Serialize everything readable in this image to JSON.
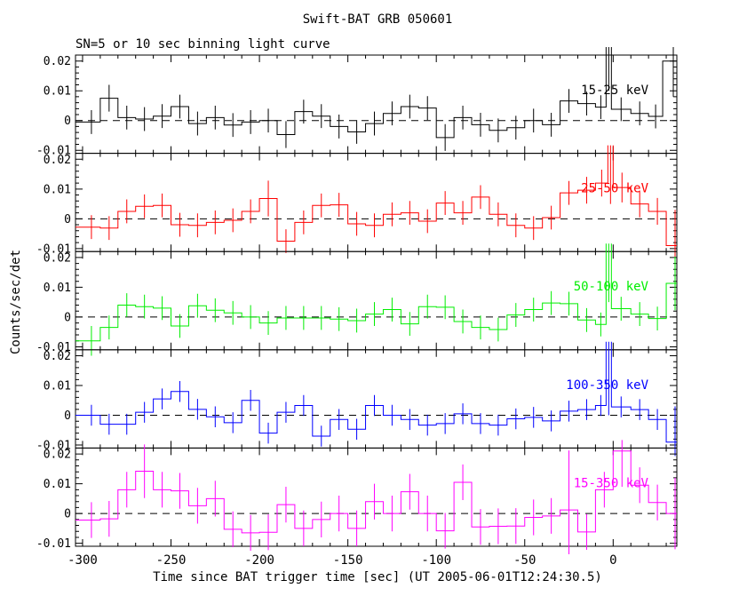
{
  "title": "Swift-BAT GRB 050601",
  "subtitle": "SN=5 or 10 sec binning light curve",
  "xlabel": "Time since BAT trigger time [sec] (UT 2005-06-01T12:24:30.5)",
  "ylabel": "Counts/sec/det",
  "chart_data": {
    "type": "step-histogram-multipanel",
    "xlim": [
      -304,
      36
    ],
    "x_ticks": [
      -300,
      -250,
      -200,
      -150,
      -100,
      -50,
      0
    ],
    "x_minor_step": 10,
    "bin_seconds": 10,
    "ylim": [
      -0.011,
      0.022
    ],
    "y_major_ticks": [
      -0.01,
      0,
      0.01,
      0.02
    ],
    "y_minor_step": 0.002,
    "zero_line": "dashed",
    "panels": [
      {
        "label": "15-25 keV",
        "color": "#000000",
        "steps": [
          [
            -300,
            -290,
            -0.0005
          ],
          [
            -290,
            -280,
            0.0075
          ],
          [
            -280,
            -270,
            0.001
          ],
          [
            -270,
            -260,
            0.0005
          ],
          [
            -260,
            -250,
            0.0015
          ],
          [
            -250,
            -240,
            0.0047
          ],
          [
            -240,
            -230,
            -0.001
          ],
          [
            -230,
            -220,
            0.001
          ],
          [
            -220,
            -210,
            -0.0015
          ],
          [
            -210,
            -200,
            -0.0005
          ],
          [
            -200,
            -190,
            0
          ],
          [
            -190,
            -180,
            -0.0047
          ],
          [
            -180,
            -170,
            0.003
          ],
          [
            -170,
            -160,
            0.0015
          ],
          [
            -160,
            -150,
            -0.002
          ],
          [
            -150,
            -140,
            -0.0038
          ],
          [
            -140,
            -130,
            -0.001
          ],
          [
            -130,
            -120,
            0.0024
          ],
          [
            -120,
            -110,
            0.0047
          ],
          [
            -110,
            -100,
            0.0042
          ],
          [
            -100,
            -90,
            -0.0057
          ],
          [
            -90,
            -80,
            0.001
          ],
          [
            -80,
            -70,
            -0.0014
          ],
          [
            -70,
            -60,
            -0.0033
          ],
          [
            -60,
            -50,
            -0.0024
          ],
          [
            -50,
            -40,
            0
          ],
          [
            -40,
            -30,
            -0.0014
          ],
          [
            -30,
            -20,
            0.0066
          ],
          [
            -20,
            -10,
            0.0057
          ],
          [
            -10,
            -4,
            0.0045
          ],
          [
            -4,
            -1,
            0.06
          ],
          [
            -1,
            10,
            0.0038
          ],
          [
            10,
            20,
            0.0024
          ],
          [
            20,
            28,
            0.0014
          ],
          [
            28,
            40,
            0.02
          ]
        ],
        "errors": [
          0.004,
          0.0045,
          0.004,
          0.004,
          0.004,
          0.004,
          0.004,
          0.004,
          0.004,
          0.004,
          0.004,
          0.0045,
          0.004,
          0.004,
          0.004,
          0.004,
          0.004,
          0.004,
          0.004,
          0.004,
          0.0045,
          0.004,
          0.004,
          0.004,
          0.004,
          0.004,
          0.004,
          0.004,
          0.004,
          0.004,
          0.05,
          0.004,
          0.004,
          0.004,
          0.012
        ]
      },
      {
        "label": "25-50 keV",
        "color": "#ff0000",
        "steps": [
          [
            -300,
            -290,
            -0.0028
          ],
          [
            -290,
            -280,
            -0.0031
          ],
          [
            -280,
            -270,
            0.0025
          ],
          [
            -270,
            -260,
            0.0042
          ],
          [
            -260,
            -250,
            0.0045
          ],
          [
            -250,
            -240,
            -0.002
          ],
          [
            -240,
            -230,
            -0.0022
          ],
          [
            -230,
            -220,
            -0.0012
          ],
          [
            -220,
            -210,
            -0.0005
          ],
          [
            -210,
            -200,
            0.0025
          ],
          [
            -200,
            -190,
            0.0068
          ],
          [
            -190,
            -180,
            -0.0075
          ],
          [
            -180,
            -170,
            -0.0012
          ],
          [
            -170,
            -160,
            0.0045
          ],
          [
            -160,
            -150,
            0.0047
          ],
          [
            -150,
            -140,
            -0.0017
          ],
          [
            -140,
            -130,
            -0.0022
          ],
          [
            -130,
            -120,
            0.0015
          ],
          [
            -120,
            -110,
            0.002
          ],
          [
            -110,
            -100,
            -0.0008
          ],
          [
            -100,
            -90,
            0.0053
          ],
          [
            -90,
            -80,
            0.002
          ],
          [
            -80,
            -70,
            0.0073
          ],
          [
            -70,
            -60,
            0.0015
          ],
          [
            -60,
            -50,
            -0.0022
          ],
          [
            -50,
            -40,
            -0.0031
          ],
          [
            -40,
            -30,
            0.0004
          ],
          [
            -30,
            -20,
            0.0087
          ],
          [
            -20,
            -10,
            0.0096
          ],
          [
            -10,
            -3,
            0.012
          ],
          [
            -3,
            0,
            0.045
          ],
          [
            0,
            10,
            0.0105
          ],
          [
            10,
            20,
            0.005
          ],
          [
            20,
            30,
            0.0025
          ],
          [
            30,
            40,
            -0.009
          ]
        ],
        "errors": [
          0.004,
          0.004,
          0.004,
          0.004,
          0.004,
          0.004,
          0.004,
          0.004,
          0.004,
          0.004,
          0.006,
          0.004,
          0.004,
          0.004,
          0.004,
          0.004,
          0.004,
          0.004,
          0.004,
          0.004,
          0.004,
          0.004,
          0.004,
          0.004,
          0.004,
          0.004,
          0.004,
          0.004,
          0.0045,
          0.0045,
          0.04,
          0.005,
          0.0045,
          0.0045,
          0.012
        ]
      },
      {
        "label": "50-100 keV",
        "color": "#00ee00",
        "steps": [
          [
            -300,
            -290,
            -0.008
          ],
          [
            -290,
            -280,
            -0.0035
          ],
          [
            -280,
            -270,
            0.004
          ],
          [
            -270,
            -260,
            0.0035
          ],
          [
            -260,
            -250,
            0.003
          ],
          [
            -250,
            -240,
            -0.003
          ],
          [
            -240,
            -230,
            0.0038
          ],
          [
            -230,
            -220,
            0.0023
          ],
          [
            -220,
            -210,
            0.0014
          ],
          [
            -210,
            -200,
            0
          ],
          [
            -200,
            -190,
            -0.002
          ],
          [
            -190,
            -180,
            -0.0003
          ],
          [
            -180,
            -170,
            -0.0003
          ],
          [
            -170,
            -160,
            -0.0003
          ],
          [
            -160,
            -150,
            -0.0007
          ],
          [
            -150,
            -140,
            -0.0012
          ],
          [
            -140,
            -130,
            0.001
          ],
          [
            -130,
            -120,
            0.0025
          ],
          [
            -120,
            -110,
            -0.0023
          ],
          [
            -110,
            -100,
            0.0035
          ],
          [
            -100,
            -90,
            0.0033
          ],
          [
            -90,
            -80,
            -0.0015
          ],
          [
            -80,
            -70,
            -0.0035
          ],
          [
            -70,
            -60,
            -0.0042
          ],
          [
            -60,
            -50,
            0.0007
          ],
          [
            -50,
            -40,
            0.0025
          ],
          [
            -40,
            -30,
            0.0047
          ],
          [
            -30,
            -20,
            0.0045
          ],
          [
            -20,
            -10,
            -0.001
          ],
          [
            -10,
            -4,
            -0.0025
          ],
          [
            -4,
            -1,
            0.04
          ],
          [
            -1,
            10,
            0.0028
          ],
          [
            10,
            20,
            0.001
          ],
          [
            20,
            30,
            -0.0005
          ],
          [
            30,
            40,
            0.0113
          ]
        ],
        "errors": [
          0.005,
          0.004,
          0.004,
          0.004,
          0.004,
          0.004,
          0.004,
          0.004,
          0.004,
          0.004,
          0.004,
          0.004,
          0.004,
          0.004,
          0.004,
          0.004,
          0.004,
          0.004,
          0.004,
          0.004,
          0.004,
          0.004,
          0.004,
          0.004,
          0.004,
          0.004,
          0.004,
          0.004,
          0.004,
          0.004,
          0.035,
          0.004,
          0.004,
          0.004,
          0.009
        ]
      },
      {
        "label": "100-350 keV",
        "color": "#0000ff",
        "steps": [
          [
            -300,
            -290,
            0
          ],
          [
            -290,
            -280,
            -0.003
          ],
          [
            -280,
            -270,
            -0.003
          ],
          [
            -270,
            -260,
            0.001
          ],
          [
            -260,
            -250,
            0.0055
          ],
          [
            -250,
            -240,
            0.008
          ],
          [
            -240,
            -230,
            0.002
          ],
          [
            -230,
            -220,
            -0.0005
          ],
          [
            -220,
            -210,
            -0.0025
          ],
          [
            -210,
            -200,
            0.005
          ],
          [
            -200,
            -190,
            -0.006
          ],
          [
            -190,
            -180,
            0.001
          ],
          [
            -180,
            -170,
            0.0033
          ],
          [
            -170,
            -160,
            -0.007
          ],
          [
            -160,
            -150,
            -0.0014
          ],
          [
            -150,
            -140,
            -0.0047
          ],
          [
            -140,
            -130,
            0.0033
          ],
          [
            -130,
            -120,
            0
          ],
          [
            -120,
            -110,
            -0.0014
          ],
          [
            -110,
            -100,
            -0.0033
          ],
          [
            -100,
            -90,
            -0.0028
          ],
          [
            -90,
            -80,
            0.0005
          ],
          [
            -80,
            -70,
            -0.0028
          ],
          [
            -70,
            -60,
            -0.0033
          ],
          [
            -60,
            -50,
            -0.0012
          ],
          [
            -50,
            -40,
            -0.0007
          ],
          [
            -40,
            -30,
            -0.0019
          ],
          [
            -30,
            -20,
            0.0014
          ],
          [
            -20,
            -10,
            0.0019
          ],
          [
            -10,
            -4,
            0.0033
          ],
          [
            -4,
            -1,
            0.05
          ],
          [
            -1,
            10,
            0.0028
          ],
          [
            10,
            20,
            0.0019
          ],
          [
            20,
            30,
            -0.0014
          ],
          [
            30,
            40,
            -0.009
          ]
        ],
        "errors": [
          0.0035,
          0.0035,
          0.0035,
          0.0035,
          0.0035,
          0.0035,
          0.0035,
          0.0035,
          0.0035,
          0.0035,
          0.0035,
          0.0035,
          0.0035,
          0.0035,
          0.0035,
          0.0035,
          0.0035,
          0.0035,
          0.0035,
          0.0035,
          0.0035,
          0.0035,
          0.0035,
          0.0035,
          0.0035,
          0.0035,
          0.0035,
          0.0035,
          0.0035,
          0.0035,
          0.05,
          0.0035,
          0.0035,
          0.0035,
          0.012
        ]
      },
      {
        "label": "15-350 keV",
        "color": "#ff00ff",
        "steps": [
          [
            -300,
            -290,
            -0.0022
          ],
          [
            -290,
            -280,
            -0.0018
          ],
          [
            -280,
            -270,
            0.008
          ],
          [
            -270,
            -260,
            0.0142
          ],
          [
            -260,
            -250,
            0.008
          ],
          [
            -250,
            -240,
            0.0076
          ],
          [
            -240,
            -230,
            0.0026
          ],
          [
            -230,
            -220,
            0.005
          ],
          [
            -220,
            -210,
            -0.0053
          ],
          [
            -210,
            -200,
            -0.0065
          ],
          [
            -200,
            -190,
            -0.0063
          ],
          [
            -190,
            -180,
            0.003
          ],
          [
            -180,
            -170,
            -0.005
          ],
          [
            -170,
            -160,
            -0.002
          ],
          [
            -160,
            -150,
            0
          ],
          [
            -150,
            -140,
            -0.005
          ],
          [
            -140,
            -130,
            0.004
          ],
          [
            -130,
            -120,
            0
          ],
          [
            -120,
            -110,
            0.0073
          ],
          [
            -110,
            -100,
            0
          ],
          [
            -100,
            -90,
            -0.0058
          ],
          [
            -90,
            -80,
            0.0105
          ],
          [
            -80,
            -70,
            -0.0045
          ],
          [
            -70,
            -60,
            -0.0043
          ],
          [
            -60,
            -50,
            -0.0042
          ],
          [
            -50,
            -40,
            -0.0013
          ],
          [
            -40,
            -30,
            -0.0008
          ],
          [
            -30,
            -20,
            0.0012
          ],
          [
            -20,
            -10,
            -0.0062
          ],
          [
            -10,
            0,
            0.008
          ],
          [
            0,
            10,
            0.021
          ],
          [
            10,
            20,
            0.0095
          ],
          [
            20,
            30,
            0.0037
          ],
          [
            30,
            40,
            0
          ]
        ],
        "errors": [
          0.006,
          0.006,
          0.006,
          0.009,
          0.006,
          0.006,
          0.006,
          0.006,
          0.006,
          0.006,
          0.006,
          0.006,
          0.006,
          0.006,
          0.006,
          0.006,
          0.006,
          0.006,
          0.006,
          0.006,
          0.006,
          0.006,
          0.006,
          0.006,
          0.006,
          0.006,
          0.006,
          0.02,
          0.006,
          0.006,
          0.012,
          0.006,
          0.006,
          0.012
        ]
      }
    ]
  }
}
